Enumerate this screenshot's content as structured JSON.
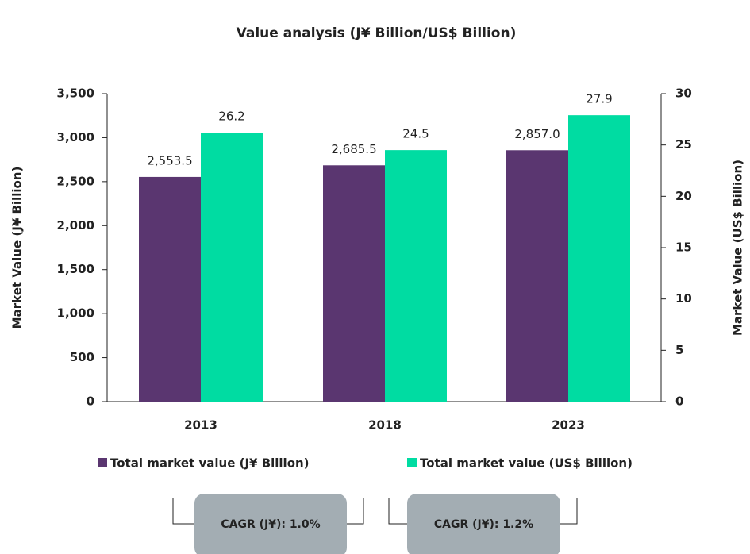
{
  "chart_data": {
    "type": "bar",
    "title": "Value analysis (J¥ Billion/US$ Billion)",
    "categories": [
      "2013",
      "2018",
      "2023"
    ],
    "ylabel": "Market Value (J¥ Billion)",
    "y2label": "Market Value (US$ Billion)",
    "ylim": [
      0,
      3500
    ],
    "yticks": [
      0,
      500,
      {
        "value": 1000,
        "label": "1,000"
      },
      {
        "value": 1500,
        "label": "1,500"
      },
      {
        "value": 2000,
        "label": "2,000"
      },
      {
        "value": 2500,
        "label": "2,500"
      },
      {
        "value": 3000,
        "label": "3,000"
      },
      {
        "value": 3500,
        "label": "3,500"
      }
    ],
    "y2lim": [
      0,
      30
    ],
    "y2ticks": [
      0,
      5,
      10,
      15,
      20,
      25,
      30
    ],
    "series": [
      {
        "name": "Total market value (J¥ Billion)",
        "color": "#5a3670",
        "values": [
          2553.5,
          2685.5,
          2857.0
        ],
        "value_labels": [
          "2,553.5",
          "2,685.5",
          "2,857.0"
        ]
      },
      {
        "name": "Total market value (US$ Billion)",
        "color": "#00dca2",
        "values": [
          26.2,
          24.5,
          27.9
        ],
        "axis": "y2"
      }
    ],
    "annotations": [
      "CAGR (J¥): 1.0%",
      "CAGR (J¥): 1.2%"
    ]
  }
}
